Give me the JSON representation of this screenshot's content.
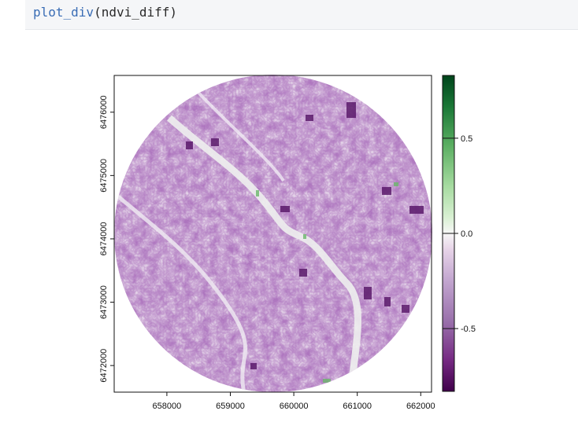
{
  "code": {
    "function_name": "plot_div",
    "argument": "ndvi_diff",
    "open_paren": "(",
    "close_paren": ")"
  },
  "chart_data": {
    "type": "heatmap",
    "title": "",
    "xlabel": "",
    "ylabel": "",
    "x_ticks": [
      658000,
      659000,
      660000,
      661000,
      662000
    ],
    "y_ticks": [
      6472000,
      6473000,
      6474000,
      6475000,
      6476000
    ],
    "xlim": [
      657170,
      662170
    ],
    "ylim": [
      6471580,
      6476580
    ],
    "legend": {
      "type": "colorbar",
      "position": "right",
      "ticks": [
        0.5,
        0.0,
        -0.5
      ],
      "tick_labels": [
        "0.5",
        "0.0",
        "-0.5"
      ],
      "range": [
        -0.83,
        0.83
      ],
      "palette": "purple-white-green",
      "low_color": "#40004b",
      "mid_color": "#f7f7f7",
      "high_color": "#00441b"
    },
    "extent_shape": "circle",
    "dominant_value_range": [
      -0.6,
      0.05
    ]
  }
}
